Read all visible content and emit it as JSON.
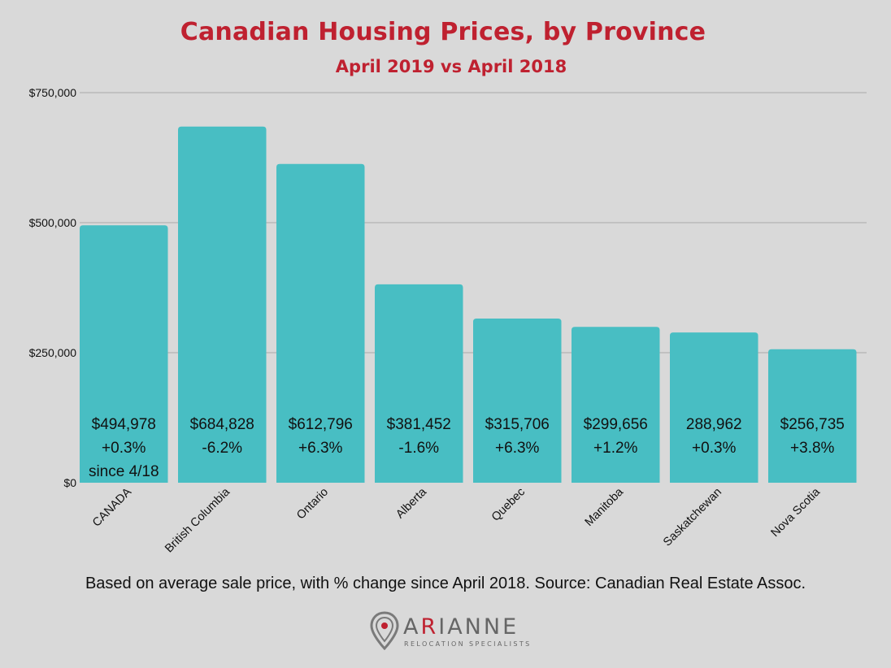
{
  "chart_data": {
    "type": "bar",
    "title": "Canadian Housing Prices, by Province",
    "subtitle": "April 2019 vs April 2018",
    "xlabel": "",
    "ylabel": "",
    "ylim": [
      0,
      750000
    ],
    "y_ticks": [
      {
        "value": 0,
        "label": "$0"
      },
      {
        "value": 250000,
        "label": "$250,000"
      },
      {
        "value": 500000,
        "label": "$500,000"
      },
      {
        "value": 750000,
        "label": "$750,000"
      }
    ],
    "grid": true,
    "bar_color": "#48bec3",
    "categories": [
      "CANADA",
      "British Columbia",
      "Ontario",
      "Alberta",
      "Quebec",
      "Manitoba",
      "Saskatchewan",
      "Nova Scotia"
    ],
    "values": [
      494978,
      684828,
      612796,
      381452,
      315706,
      299656,
      288962,
      256735
    ],
    "data_labels": [
      [
        "$494,978",
        "+0.3%",
        "since 4/18"
      ],
      [
        "$684,828",
        "-6.2%"
      ],
      [
        "$612,796",
        "+6.3%"
      ],
      [
        "$381,452",
        "-1.6%"
      ],
      [
        "$315,706",
        "+6.3%"
      ],
      [
        "$299,656",
        "+1.2%"
      ],
      [
        "288,962",
        "+0.3%"
      ],
      [
        "$256,735",
        "+3.8%"
      ]
    ]
  },
  "footnote": "Based on average sale price, with % change since April 2018. Source: Canadian Real Estate Assoc.",
  "logo": {
    "name_lead": "A",
    "name_accent": "R",
    "name_rest": "IANNE",
    "tagline": "RELOCATION SPECIALISTS",
    "accent_color": "#bf2130",
    "icon": "location-pin-icon"
  }
}
